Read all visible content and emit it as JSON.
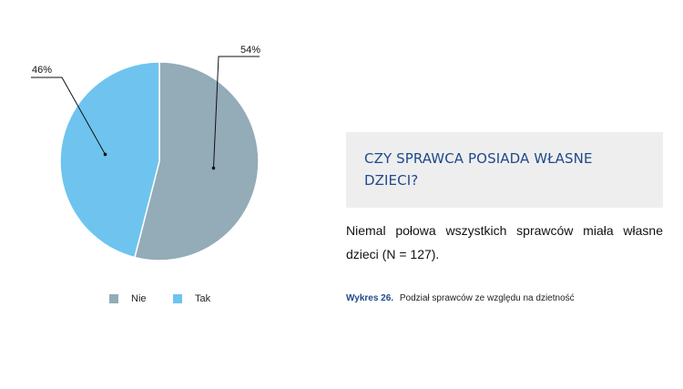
{
  "chart_data": {
    "type": "pie",
    "categories": [
      "Nie",
      "Tak"
    ],
    "values": [
      54,
      46
    ],
    "data_labels": [
      "54%",
      "46%"
    ],
    "colors": [
      "#94abb8",
      "#6ec4ee"
    ],
    "legend_placement": "bottom"
  },
  "section": {
    "heading": "CZY SPRAWCA POSIADA WŁASNE DZIECI?",
    "body": "Niemal połowa wszystkich sprawców miała własne dzieci (N = 127).",
    "caption_label": "Wykres 26.",
    "caption_text": "Podział sprawców ze względu na dzietność"
  }
}
